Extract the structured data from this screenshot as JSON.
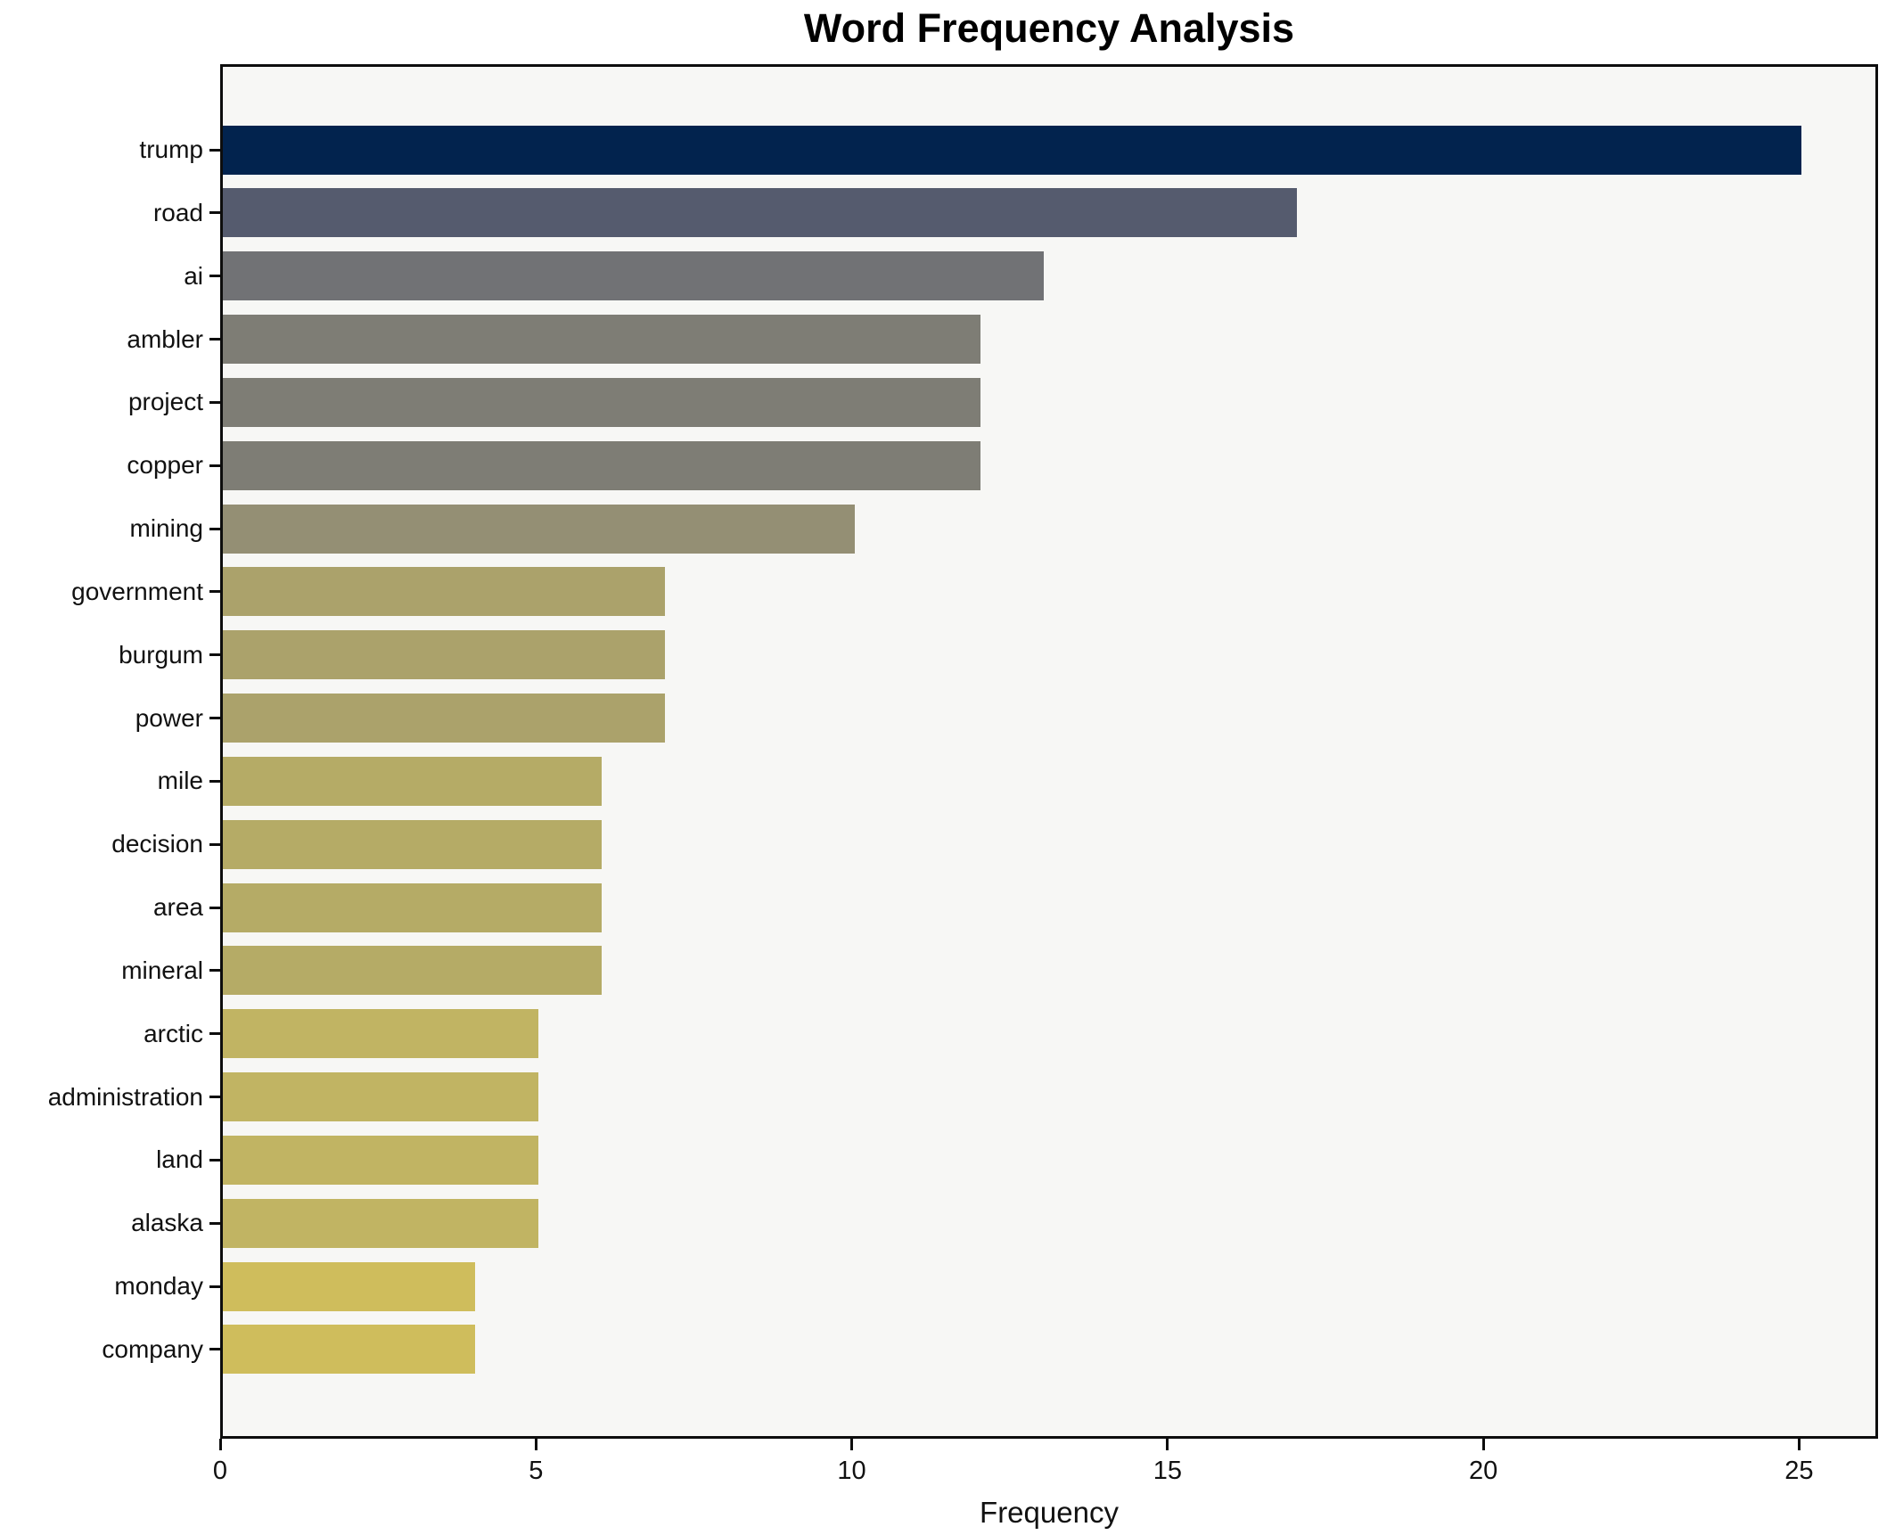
{
  "chart_data": {
    "type": "bar",
    "orientation": "horizontal",
    "title": "Word Frequency Analysis",
    "xlabel": "Frequency",
    "ylabel": "",
    "grid": false,
    "legend": false,
    "xlim": [
      0,
      26.25
    ],
    "xticks": [
      0,
      5,
      10,
      15,
      20,
      25
    ],
    "categories": [
      "trump",
      "road",
      "ai",
      "ambler",
      "project",
      "copper",
      "mining",
      "government",
      "burgum",
      "power",
      "mile",
      "decision",
      "area",
      "mineral",
      "arctic",
      "administration",
      "land",
      "alaska",
      "monday",
      "company"
    ],
    "values": [
      25,
      17,
      13,
      12,
      12,
      12,
      10,
      7,
      7,
      7,
      6,
      6,
      6,
      6,
      5,
      5,
      5,
      5,
      4,
      4
    ],
    "bar_colors": [
      "#02234e",
      "#555b6e",
      "#717275",
      "#7e7d75",
      "#7e7d75",
      "#7e7d75",
      "#948f74",
      "#aba26b",
      "#aba26b",
      "#aba26b",
      "#b5ab66",
      "#b5ab66",
      "#b5ab66",
      "#b5ab66",
      "#c1b463",
      "#c1b463",
      "#c1b463",
      "#c1b463",
      "#cfbd5c",
      "#cfbd5c"
    ],
    "colors": {
      "plot_background": "#f7f7f5",
      "figure_background": "#ffffff",
      "spine": "#0d0d0d",
      "text": "#111111"
    }
  }
}
